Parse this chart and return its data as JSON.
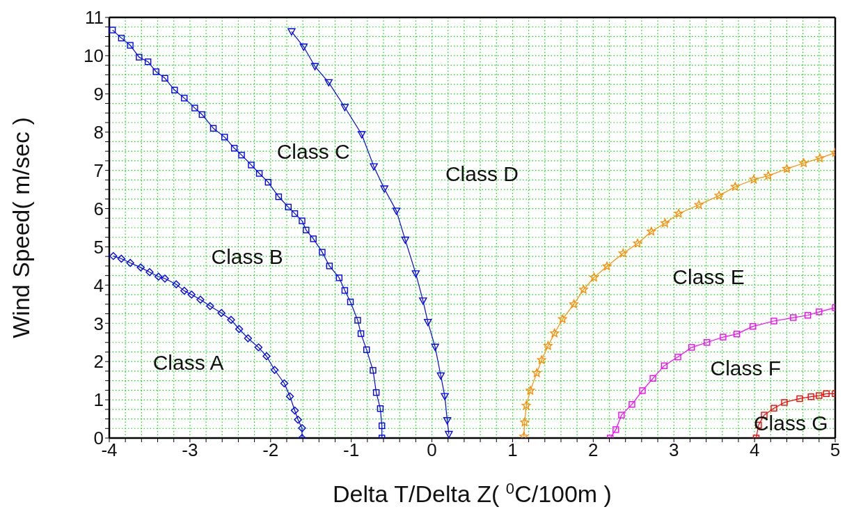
{
  "chart_data": {
    "type": "line",
    "xlabel": "Delta T/Delta Z( $^{0}$C/100m )",
    "ylabel": "Wind Speed( m/sec )",
    "xlim": [
      -4,
      5
    ],
    "xticks": [
      -4,
      {
        "value": -3.8,
        "label": null
      },
      {
        "value": -3.6,
        "label": null
      },
      {
        "value": -3.4,
        "label": null
      },
      {
        "value": -3.2,
        "label": null
      },
      -3,
      {
        "value": -2.8,
        "label": null
      },
      {
        "value": -2.6,
        "label": null
      },
      {
        "value": -2.4,
        "label": null
      },
      {
        "value": -2.2,
        "label": null
      },
      -2,
      {
        "value": -1.8,
        "label": null
      },
      {
        "value": -1.6,
        "label": null
      },
      {
        "value": -1.4,
        "label": null
      },
      {
        "value": -1.2,
        "label": null
      },
      -1,
      {
        "value": -0.8,
        "label": null
      },
      {
        "value": -0.6,
        "label": null
      },
      {
        "value": -0.4,
        "label": null
      },
      {
        "value": -0.2,
        "label": null
      },
      0,
      {
        "value": 0.2,
        "label": null
      },
      {
        "value": 0.4,
        "label": null
      },
      {
        "value": 0.6,
        "label": null
      },
      {
        "value": 0.8,
        "label": null
      },
      1,
      {
        "value": 1.2,
        "label": null
      },
      {
        "value": 1.4,
        "label": null
      },
      {
        "value": 1.6,
        "label": null
      },
      {
        "value": 1.8,
        "label": null
      },
      2,
      {
        "value": 2.2,
        "label": null
      },
      {
        "value": 2.4,
        "label": null
      },
      {
        "value": 2.6,
        "label": null
      },
      {
        "value": 2.8,
        "label": null
      },
      3,
      {
        "value": 3.2,
        "label": null
      },
      {
        "value": 3.4,
        "label": null
      },
      {
        "value": 3.6,
        "label": null
      },
      {
        "value": 3.8,
        "label": null
      },
      4,
      {
        "value": 4.2,
        "label": null
      },
      {
        "value": 4.4,
        "label": null
      },
      {
        "value": 4.6,
        "label": null
      },
      {
        "value": 4.8,
        "label": null
      },
      5
    ],
    "ylim": [
      0,
      11
    ],
    "yticks": [
      0,
      {
        "value": 0.25,
        "label": null
      },
      {
        "value": 0.5,
        "label": null
      },
      {
        "value": 0.75,
        "label": null
      },
      1,
      {
        "value": 1.25,
        "label": null
      },
      {
        "value": 1.5,
        "label": null
      },
      {
        "value": 1.75,
        "label": null
      },
      2,
      {
        "value": 2.25,
        "label": null
      },
      {
        "value": 2.5,
        "label": null
      },
      {
        "value": 2.75,
        "label": null
      },
      3,
      {
        "value": 3.25,
        "label": null
      },
      {
        "value": 3.5,
        "label": null
      },
      {
        "value": 3.75,
        "label": null
      },
      4,
      {
        "value": 4.25,
        "label": null
      },
      {
        "value": 4.5,
        "label": null
      },
      {
        "value": 4.75,
        "label": null
      },
      5,
      {
        "value": 5.25,
        "label": null
      },
      {
        "value": 5.5,
        "label": null
      },
      {
        "value": 5.75,
        "label": null
      },
      6,
      {
        "value": 6.25,
        "label": null
      },
      {
        "value": 6.5,
        "label": null
      },
      {
        "value": 6.75,
        "label": null
      },
      7,
      {
        "value": 7.25,
        "label": null
      },
      {
        "value": 7.5,
        "label": null
      },
      {
        "value": 7.75,
        "label": null
      },
      8,
      {
        "value": 8.25,
        "label": null
      },
      {
        "value": 8.5,
        "label": null
      },
      {
        "value": 8.75,
        "label": null
      },
      9,
      {
        "value": 9.25,
        "label": null
      },
      {
        "value": 9.5,
        "label": null
      },
      {
        "value": 9.75,
        "label": null
      },
      10,
      {
        "value": 10.25,
        "label": null
      },
      {
        "value": 10.5,
        "label": null
      },
      {
        "value": 10.75,
        "label": null
      },
      11
    ],
    "grid": true,
    "series": [
      {
        "color": "#0000ff",
        "marker": "diamond",
        "x": [
          -3.95,
          -3.85,
          -3.74,
          -3.61,
          -3.5,
          -3.39,
          -3.31,
          -3.17,
          -3.07,
          -2.98,
          -2.87,
          -2.75,
          -2.61,
          -2.49,
          -2.39,
          -2.28,
          -2.15,
          -2.05,
          -1.95,
          -1.83,
          -1.76,
          -1.7,
          -1.66,
          -1.61,
          -1.61
        ],
        "values": [
          4.76,
          4.69,
          4.58,
          4.46,
          4.34,
          4.22,
          4.17,
          4.02,
          3.85,
          3.75,
          3.62,
          3.45,
          3.27,
          3.09,
          2.85,
          2.61,
          2.37,
          2.14,
          1.78,
          1.43,
          1.09,
          0.72,
          0.48,
          0.26,
          0
        ]
      },
      {
        "color": "#0000ff",
        "marker": "square",
        "x": [
          -3.96,
          -3.85,
          -3.74,
          -3.63,
          -3.52,
          -3.42,
          -3.31,
          -3.19,
          -3.07,
          -2.94,
          -2.85,
          -2.71,
          -2.57,
          -2.45,
          -2.36,
          -2.24,
          -2.14,
          -2.03,
          -1.9,
          -1.78,
          -1.7,
          -1.61,
          -1.56,
          -1.47,
          -1.36,
          -1.27,
          -1.15,
          -1.08,
          -1.01,
          -0.92,
          -0.88,
          -0.81,
          -0.73,
          -0.69,
          -0.64,
          -0.62,
          -0.62
        ],
        "values": [
          10.67,
          10.46,
          10.27,
          9.96,
          9.84,
          9.58,
          9.41,
          9.1,
          8.89,
          8.63,
          8.46,
          8.1,
          7.87,
          7.58,
          7.4,
          7.14,
          6.92,
          6.69,
          6.31,
          6.04,
          5.87,
          5.68,
          5.44,
          5.21,
          4.86,
          4.5,
          4.19,
          3.86,
          3.56,
          3.08,
          2.73,
          2.31,
          1.77,
          1.19,
          0.77,
          0.32,
          0
        ]
      },
      {
        "color": "#0000ff",
        "marker": "triangle",
        "x": [
          -1.74,
          -1.59,
          -1.45,
          -1.28,
          -1.08,
          -0.87,
          -0.72,
          -0.59,
          -0.44,
          -0.33,
          -0.2,
          -0.11,
          -0.05,
          0.04,
          0.11,
          0.16,
          0.19,
          0.21
        ],
        "values": [
          10.63,
          10.23,
          9.72,
          9.3,
          8.65,
          7.94,
          7.1,
          6.52,
          5.94,
          5.18,
          4.3,
          3.59,
          3.03,
          2.38,
          1.63,
          1.09,
          0.46,
          0.1
        ]
      },
      {
        "color": "#ff8c00",
        "marker": "star",
        "x": [
          1.14,
          1.15,
          1.17,
          1.22,
          1.3,
          1.36,
          1.44,
          1.52,
          1.62,
          1.76,
          1.88,
          2.01,
          2.17,
          2.37,
          2.55,
          2.72,
          2.89,
          3.06,
          3.31,
          3.56,
          3.76,
          3.99,
          4.17,
          4.4,
          4.61,
          4.81,
          5
        ],
        "values": [
          0.04,
          0.41,
          0.85,
          1.24,
          1.7,
          2.04,
          2.41,
          2.74,
          3.11,
          3.5,
          3.88,
          4.2,
          4.49,
          4.83,
          5.09,
          5.4,
          5.62,
          5.87,
          6.1,
          6.34,
          6.57,
          6.76,
          6.86,
          7.04,
          7.19,
          7.32,
          7.46
        ]
      },
      {
        "color": "#ff00ff",
        "marker": "square",
        "x": [
          2.21,
          2.28,
          2.35,
          2.48,
          2.61,
          2.74,
          2.88,
          3.05,
          3.22,
          3.41,
          3.61,
          3.78,
          3.98,
          4.24,
          4.48,
          4.66,
          4.8,
          5
        ],
        "values": [
          0,
          0.22,
          0.6,
          0.88,
          1.24,
          1.56,
          1.89,
          2.12,
          2.37,
          2.5,
          2.64,
          2.72,
          2.92,
          3.06,
          3.15,
          3.21,
          3.3,
          3.41
        ]
      },
      {
        "color": "#ff0000",
        "marker": "square",
        "x": [
          4.02,
          4.05,
          4.12,
          4.24,
          4.37,
          4.56,
          4.7,
          4.8,
          4.89,
          5
        ],
        "values": [
          0,
          0.34,
          0.6,
          0.78,
          0.93,
          1.03,
          1.08,
          1.11,
          1.16,
          1.16
        ]
      }
    ],
    "annotations": [
      "Class A",
      "Class B",
      "Class C",
      "Class D",
      "Class E",
      "Class F",
      "Class G"
    ]
  }
}
